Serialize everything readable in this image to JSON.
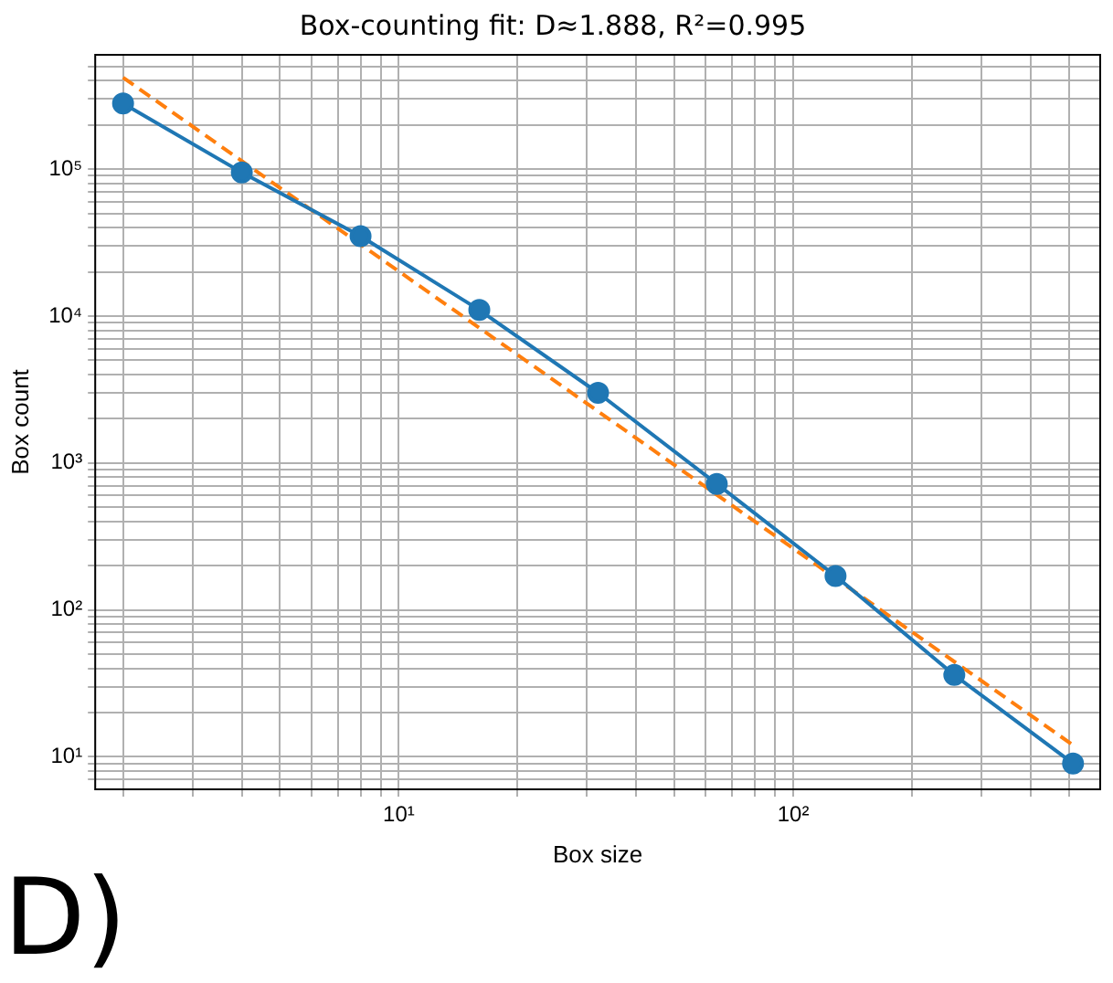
{
  "chart_data": {
    "type": "line",
    "title": "Box-counting fit: D≈1.888, R²=0.995",
    "xlabel": "Box size",
    "ylabel": "Box count",
    "log": "xy",
    "grid": true,
    "legend": false,
    "annotations": [
      "D)"
    ],
    "xlim": [
      1.7,
      600
    ],
    "ylim": [
      6,
      600000
    ],
    "xticks": [
      {
        "value": 2,
        "label": null
      },
      {
        "value": 3,
        "label": null
      },
      {
        "value": 4,
        "label": null
      },
      {
        "value": 5,
        "label": null
      },
      {
        "value": 6,
        "label": null
      },
      {
        "value": 7,
        "label": null
      },
      {
        "value": 8,
        "label": null
      },
      {
        "value": 9,
        "label": null
      },
      {
        "value": 10,
        "label": "10¹"
      },
      {
        "value": 20,
        "label": null
      },
      {
        "value": 30,
        "label": null
      },
      {
        "value": 40,
        "label": null
      },
      {
        "value": 50,
        "label": null
      },
      {
        "value": 60,
        "label": null
      },
      {
        "value": 70,
        "label": null
      },
      {
        "value": 80,
        "label": null
      },
      {
        "value": 90,
        "label": null
      },
      {
        "value": 100,
        "label": "10²"
      },
      {
        "value": 200,
        "label": null
      },
      {
        "value": 300,
        "label": null
      },
      {
        "value": 400,
        "label": null
      },
      {
        "value": 500,
        "label": null
      }
    ],
    "yticks": [
      {
        "value": 7,
        "label": null
      },
      {
        "value": 8,
        "label": null
      },
      {
        "value": 9,
        "label": null
      },
      {
        "value": 10,
        "label": "10¹"
      },
      {
        "value": 20,
        "label": null
      },
      {
        "value": 30,
        "label": null
      },
      {
        "value": 40,
        "label": null
      },
      {
        "value": 50,
        "label": null
      },
      {
        "value": 60,
        "label": null
      },
      {
        "value": 70,
        "label": null
      },
      {
        "value": 80,
        "label": null
      },
      {
        "value": 90,
        "label": null
      },
      {
        "value": 100,
        "label": "10²"
      },
      {
        "value": 200,
        "label": null
      },
      {
        "value": 300,
        "label": null
      },
      {
        "value": 400,
        "label": null
      },
      {
        "value": 500,
        "label": null
      },
      {
        "value": 600,
        "label": null
      },
      {
        "value": 700,
        "label": null
      },
      {
        "value": 800,
        "label": null
      },
      {
        "value": 900,
        "label": null
      },
      {
        "value": 1000,
        "label": "10³"
      },
      {
        "value": 2000,
        "label": null
      },
      {
        "value": 3000,
        "label": null
      },
      {
        "value": 4000,
        "label": null
      },
      {
        "value": 5000,
        "label": null
      },
      {
        "value": 6000,
        "label": null
      },
      {
        "value": 7000,
        "label": null
      },
      {
        "value": 8000,
        "label": null
      },
      {
        "value": 9000,
        "label": null
      },
      {
        "value": 10000,
        "label": "10⁴"
      },
      {
        "value": 20000,
        "label": null
      },
      {
        "value": 30000,
        "label": null
      },
      {
        "value": 40000,
        "label": null
      },
      {
        "value": 50000,
        "label": null
      },
      {
        "value": 60000,
        "label": null
      },
      {
        "value": 70000,
        "label": null
      },
      {
        "value": 80000,
        "label": null
      },
      {
        "value": 90000,
        "label": null
      },
      {
        "value": 100000,
        "label": "10⁵"
      },
      {
        "value": 200000,
        "label": null
      },
      {
        "value": 300000,
        "label": null
      },
      {
        "value": 400000,
        "label": null
      },
      {
        "value": 500000,
        "label": null
      }
    ],
    "series": [
      {
        "type": "line",
        "color": "#1f77b4",
        "marker": "circle",
        "line_style": "solid",
        "x": [
          2,
          4,
          8,
          16,
          32,
          64,
          128,
          256,
          512
        ],
        "values": [
          280000,
          95000,
          35000,
          11000,
          3000,
          720,
          170,
          36,
          9
        ]
      },
      {
        "type": "line",
        "color": "#ff7f0e",
        "marker": "none",
        "line_style": "dashed",
        "x": [
          2,
          512
        ],
        "values": [
          420000,
          12
        ]
      }
    ]
  }
}
